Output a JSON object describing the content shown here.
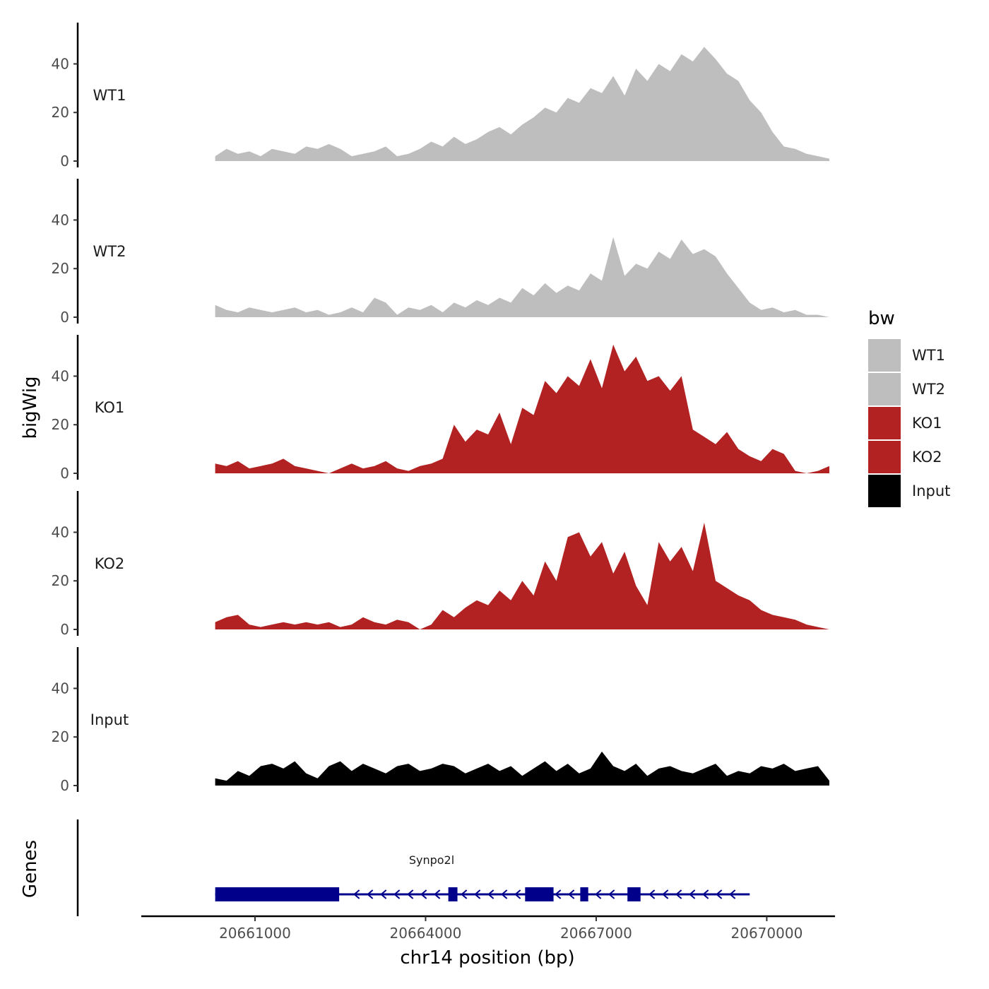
{
  "chart_data": {
    "type": "area",
    "ylabel": "bigWig",
    "xlabel": "chr14 position (bp)",
    "genes_label": "Genes",
    "x_ticks": [
      20661000,
      20664000,
      20667000,
      20670000
    ],
    "x_tick_labels": [
      "20661000",
      "20664000",
      "20667000",
      "20670000"
    ],
    "xlim": [
      20659000,
      20671200
    ],
    "ylim": [
      0,
      57
    ],
    "y_ticks": [
      0,
      20,
      40
    ],
    "y_tick_labels": [
      "0",
      "20",
      "40"
    ],
    "legend": {
      "title": "bw",
      "entries": [
        {
          "label": "WT1",
          "color": "#bebebe"
        },
        {
          "label": "WT2",
          "color": "#bebebe"
        },
        {
          "label": "KO1",
          "color": "#b22222"
        },
        {
          "label": "KO2",
          "color": "#b22222"
        },
        {
          "label": "Input",
          "color": "#000000"
        }
      ]
    },
    "tracks": [
      {
        "name": "WT1",
        "color": "#bebebe",
        "x": [
          20660300,
          20660500,
          20660700,
          20660900,
          20661100,
          20661300,
          20661500,
          20661700,
          20661900,
          20662100,
          20662300,
          20662500,
          20662700,
          20662900,
          20663100,
          20663300,
          20663500,
          20663700,
          20663900,
          20664100,
          20664300,
          20664500,
          20664700,
          20664900,
          20665100,
          20665300,
          20665500,
          20665700,
          20665900,
          20666100,
          20666300,
          20666500,
          20666700,
          20666900,
          20667100,
          20667300,
          20667500,
          20667700,
          20667900,
          20668100,
          20668300,
          20668500,
          20668700,
          20668900,
          20669100,
          20669300,
          20669500,
          20669700,
          20669900,
          20670100,
          20670300,
          20670500,
          20670700,
          20670900,
          20671100
        ],
        "values": [
          2,
          5,
          3,
          4,
          2,
          5,
          4,
          3,
          6,
          5,
          7,
          5,
          2,
          3,
          4,
          6,
          2,
          3,
          5,
          8,
          6,
          10,
          7,
          9,
          12,
          14,
          11,
          15,
          18,
          22,
          20,
          26,
          24,
          30,
          28,
          35,
          27,
          38,
          33,
          40,
          37,
          44,
          41,
          47,
          42,
          36,
          33,
          25,
          20,
          12,
          6,
          5,
          3,
          2,
          1
        ]
      },
      {
        "name": "WT2",
        "color": "#bebebe",
        "x": [
          20660300,
          20660500,
          20660700,
          20660900,
          20661100,
          20661300,
          20661500,
          20661700,
          20661900,
          20662100,
          20662300,
          20662500,
          20662700,
          20662900,
          20663100,
          20663300,
          20663500,
          20663700,
          20663900,
          20664100,
          20664300,
          20664500,
          20664700,
          20664900,
          20665100,
          20665300,
          20665500,
          20665700,
          20665900,
          20666100,
          20666300,
          20666500,
          20666700,
          20666900,
          20667100,
          20667300,
          20667500,
          20667700,
          20667900,
          20668100,
          20668300,
          20668500,
          20668700,
          20668900,
          20669100,
          20669300,
          20669500,
          20669700,
          20669900,
          20670100,
          20670300,
          20670500,
          20670700,
          20670900,
          20671100
        ],
        "values": [
          5,
          3,
          2,
          4,
          3,
          2,
          3,
          4,
          2,
          3,
          1,
          2,
          4,
          2,
          8,
          6,
          1,
          4,
          3,
          5,
          2,
          6,
          4,
          7,
          5,
          8,
          6,
          12,
          9,
          14,
          10,
          13,
          11,
          18,
          15,
          33,
          17,
          22,
          20,
          27,
          24,
          32,
          26,
          28,
          25,
          18,
          12,
          6,
          3,
          4,
          2,
          3,
          1,
          1,
          0
        ]
      },
      {
        "name": "KO1",
        "color": "#b22222",
        "x": [
          20660300,
          20660500,
          20660700,
          20660900,
          20661100,
          20661300,
          20661500,
          20661700,
          20661900,
          20662100,
          20662300,
          20662500,
          20662700,
          20662900,
          20663100,
          20663300,
          20663500,
          20663700,
          20663900,
          20664100,
          20664300,
          20664500,
          20664700,
          20664900,
          20665100,
          20665300,
          20665500,
          20665700,
          20665900,
          20666100,
          20666300,
          20666500,
          20666700,
          20666900,
          20667100,
          20667300,
          20667500,
          20667700,
          20667900,
          20668100,
          20668300,
          20668500,
          20668700,
          20668900,
          20669100,
          20669300,
          20669500,
          20669700,
          20669900,
          20670100,
          20670300,
          20670500,
          20670700,
          20670900,
          20671100
        ],
        "values": [
          4,
          3,
          5,
          2,
          3,
          4,
          6,
          3,
          2,
          1,
          0,
          2,
          4,
          2,
          3,
          5,
          2,
          1,
          3,
          4,
          6,
          20,
          13,
          18,
          16,
          25,
          12,
          27,
          24,
          38,
          33,
          40,
          36,
          47,
          35,
          53,
          42,
          48,
          38,
          40,
          34,
          40,
          18,
          15,
          12,
          17,
          10,
          7,
          5,
          10,
          8,
          1,
          0,
          1,
          3
        ]
      },
      {
        "name": "KO2",
        "color": "#b22222",
        "x": [
          20660300,
          20660500,
          20660700,
          20660900,
          20661100,
          20661300,
          20661500,
          20661700,
          20661900,
          20662100,
          20662300,
          20662500,
          20662700,
          20662900,
          20663100,
          20663300,
          20663500,
          20663700,
          20663900,
          20664100,
          20664300,
          20664500,
          20664700,
          20664900,
          20665100,
          20665300,
          20665500,
          20665700,
          20665900,
          20666100,
          20666300,
          20666500,
          20666700,
          20666900,
          20667100,
          20667300,
          20667500,
          20667700,
          20667900,
          20668100,
          20668300,
          20668500,
          20668700,
          20668900,
          20669100,
          20669300,
          20669500,
          20669700,
          20669900,
          20670100,
          20670300,
          20670500,
          20670700,
          20670900,
          20671100
        ],
        "values": [
          3,
          5,
          6,
          2,
          1,
          2,
          3,
          2,
          3,
          2,
          3,
          1,
          2,
          5,
          3,
          2,
          4,
          3,
          0,
          2,
          8,
          5,
          9,
          12,
          10,
          16,
          12,
          20,
          14,
          28,
          20,
          38,
          40,
          30,
          36,
          23,
          32,
          18,
          10,
          36,
          28,
          34,
          24,
          44,
          20,
          17,
          14,
          12,
          8,
          6,
          5,
          4,
          2,
          1,
          0
        ]
      },
      {
        "name": "Input",
        "color": "#000000",
        "x": [
          20660300,
          20660500,
          20660700,
          20660900,
          20661100,
          20661300,
          20661500,
          20661700,
          20661900,
          20662100,
          20662300,
          20662500,
          20662700,
          20662900,
          20663100,
          20663300,
          20663500,
          20663700,
          20663900,
          20664100,
          20664300,
          20664500,
          20664700,
          20664900,
          20665100,
          20665300,
          20665500,
          20665700,
          20665900,
          20666100,
          20666300,
          20666500,
          20666700,
          20666900,
          20667100,
          20667300,
          20667500,
          20667700,
          20667900,
          20668100,
          20668300,
          20668500,
          20668700,
          20668900,
          20669100,
          20669300,
          20669500,
          20669700,
          20669900,
          20670100,
          20670300,
          20670500,
          20670700,
          20670900,
          20671100
        ],
        "values": [
          3,
          2,
          6,
          4,
          8,
          9,
          7,
          10,
          5,
          3,
          8,
          10,
          6,
          9,
          7,
          5,
          8,
          9,
          6,
          7,
          9,
          8,
          5,
          7,
          9,
          6,
          8,
          4,
          7,
          10,
          6,
          9,
          5,
          7,
          14,
          8,
          6,
          9,
          4,
          7,
          8,
          6,
          5,
          7,
          9,
          4,
          6,
          5,
          8,
          7,
          9,
          6,
          7,
          8,
          2
        ]
      }
    ],
    "gene": {
      "name": "Synpo2l",
      "start": 20660300,
      "end": 20669700,
      "strand": "-",
      "color": "#00008b",
      "exons": [
        [
          20660300,
          20662480
        ],
        [
          20664400,
          20664560
        ],
        [
          20665750,
          20666250
        ],
        [
          20666720,
          20666860
        ],
        [
          20667550,
          20667780
        ]
      ]
    }
  }
}
